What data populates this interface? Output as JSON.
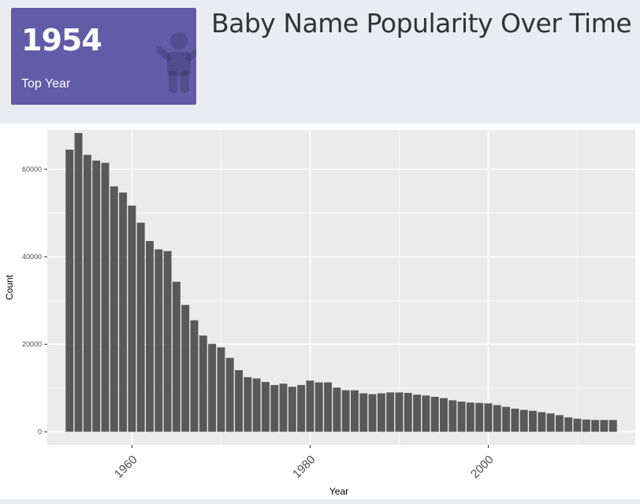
{
  "header": {
    "title": "Baby Name Popularity Over Time",
    "value_box": {
      "value": "1954",
      "subtitle": "Top Year",
      "icon": "child-icon",
      "color": "#605ca8"
    }
  },
  "chart_data": {
    "type": "bar",
    "title": "",
    "xlabel": "Year",
    "ylabel": "Count",
    "xlim": [
      1950.5,
      2016.5
    ],
    "ylim": [
      -3000,
      69000
    ],
    "x_ticks": [
      1960,
      1980,
      2000
    ],
    "y_ticks": [
      0,
      20000,
      40000,
      60000
    ],
    "grid": true,
    "bar_color": "#595959",
    "panel_color": "#ebebeb",
    "x": [
      1953,
      1954,
      1955,
      1956,
      1957,
      1958,
      1959,
      1960,
      1961,
      1962,
      1963,
      1964,
      1965,
      1966,
      1967,
      1968,
      1969,
      1970,
      1971,
      1972,
      1973,
      1974,
      1975,
      1976,
      1977,
      1978,
      1979,
      1980,
      1981,
      1982,
      1983,
      1984,
      1985,
      1986,
      1987,
      1988,
      1989,
      1990,
      1991,
      1992,
      1993,
      1994,
      1995,
      1996,
      1997,
      1998,
      1999,
      2000,
      2001,
      2002,
      2003,
      2004,
      2005,
      2006,
      2007,
      2008,
      2009,
      2010,
      2011,
      2012,
      2013,
      2014
    ],
    "values": [
      64500,
      68300,
      63300,
      62000,
      61500,
      56100,
      54700,
      51700,
      47800,
      43600,
      41700,
      41300,
      34300,
      29000,
      25500,
      22000,
      20100,
      19300,
      16900,
      14100,
      12500,
      12200,
      11400,
      10700,
      11000,
      10300,
      10700,
      11700,
      11300,
      11300,
      10100,
      9500,
      9500,
      8800,
      8600,
      8800,
      9000,
      9000,
      8900,
      8500,
      8300,
      8000,
      7700,
      7200,
      6900,
      6700,
      6600,
      6500,
      6100,
      5700,
      5300,
      5000,
      4800,
      4500,
      4200,
      3800,
      3300,
      3000,
      2800,
      2700,
      2700,
      2700
    ]
  }
}
